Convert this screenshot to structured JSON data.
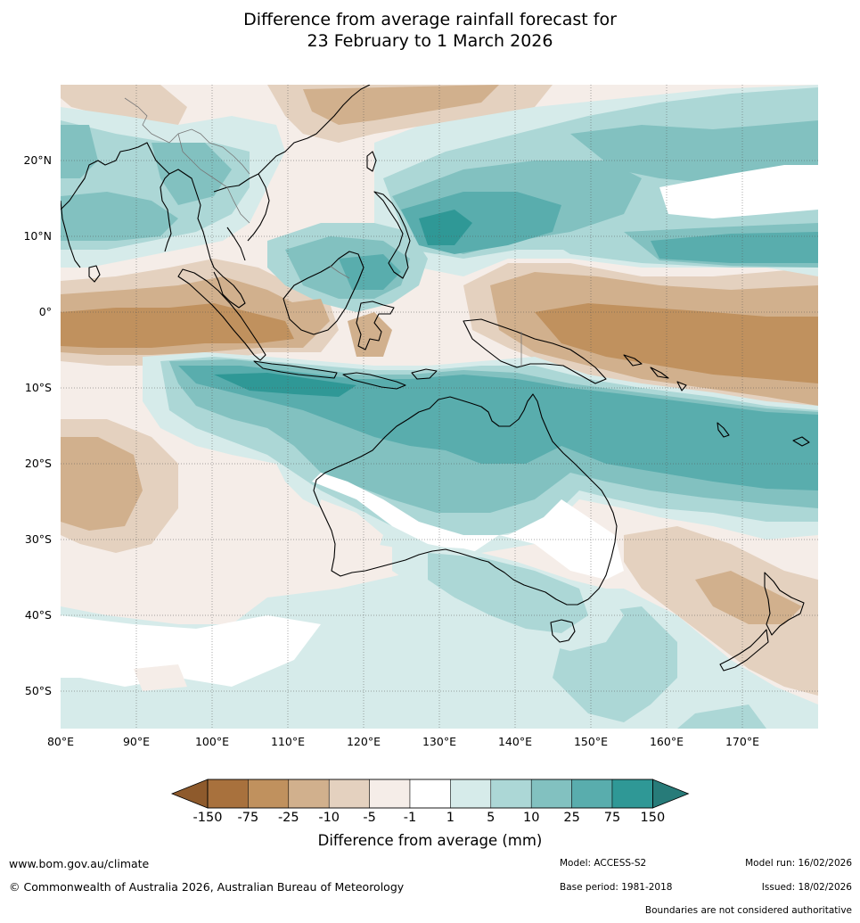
{
  "title": {
    "line1": "Difference from average rainfall forecast for",
    "line2": "23 February to 1 March 2026"
  },
  "map": {
    "lon_ticks": [
      "80°E",
      "90°E",
      "100°E",
      "110°E",
      "120°E",
      "130°E",
      "140°E",
      "150°E",
      "160°E",
      "170°E"
    ],
    "lat_ticks": [
      "20°N",
      "10°N",
      "0°",
      "10°S",
      "20°S",
      "30°S",
      "40°S",
      "50°S"
    ],
    "extent": {
      "lon": [
        80,
        180
      ],
      "lat": [
        -55,
        30
      ]
    }
  },
  "colorbar": {
    "labels": [
      "-150",
      "-75",
      "-25",
      "-10",
      "-5",
      "-1",
      "1",
      "5",
      "10",
      "25",
      "75",
      "150"
    ],
    "colors": [
      "#a8713d",
      "#c0915e",
      "#d1b08d",
      "#e4d1bf",
      "#f5ede8",
      "#ffffff",
      "#d6ebea",
      "#acd7d6",
      "#82c1c0",
      "#59adad",
      "#2f9896"
    ],
    "extend_low_color": "#8e5a2c",
    "extend_high_color": "#277b79",
    "title": "Difference from average (mm)"
  },
  "footer": {
    "website": "www.bom.gov.au/climate",
    "copyright": "© Commonwealth of Australia 2026, Australian Bureau of Meteorology",
    "model": "Model: ACCESS-S2",
    "model_run": "Model run: 16/02/2026",
    "base_period": "Base period: 1981-2018",
    "issued": "Issued: 18/02/2026",
    "disclaimer": "Boundaries are not considered authoritative"
  }
}
